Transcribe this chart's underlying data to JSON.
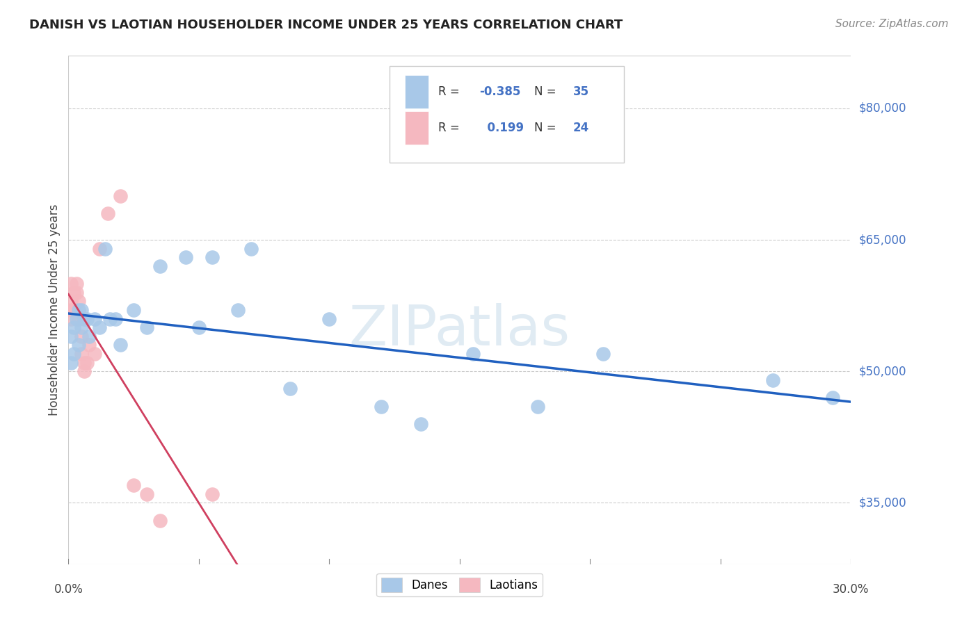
{
  "title": "DANISH VS LAOTIAN HOUSEHOLDER INCOME UNDER 25 YEARS CORRELATION CHART",
  "source": "Source: ZipAtlas.com",
  "ylabel": "Householder Income Under 25 years",
  "yticks": [
    35000,
    50000,
    65000,
    80000
  ],
  "ytick_labels": [
    "$35,000",
    "$50,000",
    "$65,000",
    "$80,000"
  ],
  "xlim": [
    0.0,
    0.3
  ],
  "ylim": [
    28000,
    86000
  ],
  "legend_r_danes": "-0.385",
  "legend_n_danes": "35",
  "legend_r_laotians": "0.199",
  "legend_n_laotians": "24",
  "danes_color": "#a8c8e8",
  "laotians_color": "#f5b8c0",
  "danes_line_color": "#2060c0",
  "laotians_line_color": "#d04060",
  "laotians_dash_color": "#e8a0b0",
  "danes_x": [
    0.001,
    0.001,
    0.002,
    0.002,
    0.003,
    0.004,
    0.004,
    0.005,
    0.005,
    0.006,
    0.007,
    0.008,
    0.01,
    0.012,
    0.014,
    0.016,
    0.018,
    0.02,
    0.025,
    0.03,
    0.035,
    0.045,
    0.05,
    0.055,
    0.065,
    0.07,
    0.085,
    0.1,
    0.12,
    0.135,
    0.155,
    0.18,
    0.205,
    0.27,
    0.293
  ],
  "danes_y": [
    54000,
    51000,
    55000,
    52000,
    56000,
    57000,
    53000,
    57000,
    55000,
    56000,
    56000,
    54000,
    56000,
    55000,
    64000,
    56000,
    56000,
    53000,
    57000,
    55000,
    62000,
    63000,
    55000,
    63000,
    57000,
    64000,
    48000,
    56000,
    46000,
    44000,
    52000,
    46000,
    52000,
    49000,
    47000
  ],
  "laotians_x": [
    0.001,
    0.001,
    0.001,
    0.001,
    0.002,
    0.002,
    0.003,
    0.003,
    0.004,
    0.004,
    0.005,
    0.005,
    0.006,
    0.006,
    0.007,
    0.008,
    0.01,
    0.012,
    0.015,
    0.02,
    0.025,
    0.03,
    0.035,
    0.055
  ],
  "laotians_y": [
    60000,
    58000,
    57000,
    56000,
    59000,
    57000,
    60000,
    59000,
    58000,
    56000,
    54000,
    52000,
    51000,
    50000,
    51000,
    53000,
    52000,
    64000,
    68000,
    70000,
    37000,
    36000,
    33000,
    36000
  ],
  "watermark": "ZIPatlas",
  "background_color": "#ffffff",
  "grid_color": "#cccccc",
  "grid_style": "--",
  "title_fontsize": 13,
  "source_fontsize": 11,
  "label_fontsize": 12,
  "tick_fontsize": 12
}
